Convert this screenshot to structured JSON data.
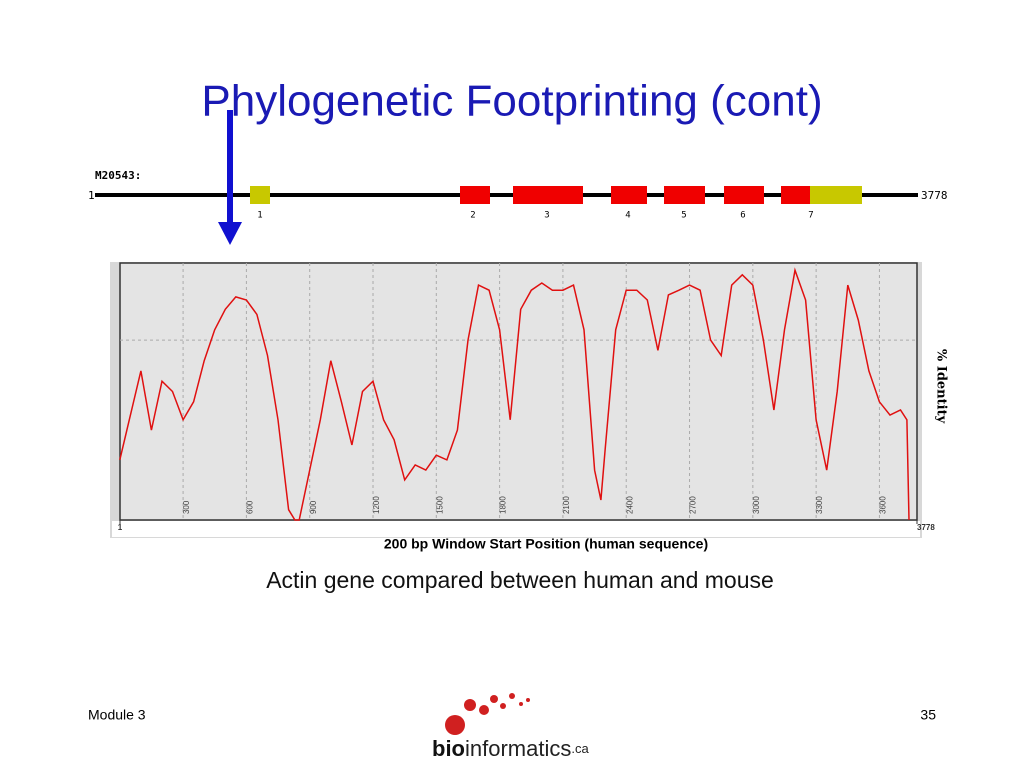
{
  "title": "Phylogenetic Footprinting (cont)",
  "gene_map": {
    "name": "M20543:",
    "start": "1",
    "end": "3778",
    "exon_labels": [
      "1",
      "2",
      "3",
      "4",
      "5",
      "6",
      "7"
    ]
  },
  "chart_data": {
    "type": "line",
    "x_label": "200 bp Window Start Position (human sequence)",
    "y_label": "% Identity",
    "x": [
      0,
      100,
      150,
      200,
      250,
      300,
      350,
      400,
      450,
      500,
      550,
      600,
      650,
      700,
      750,
      800,
      830,
      850,
      900,
      950,
      1000,
      1050,
      1100,
      1150,
      1200,
      1250,
      1300,
      1350,
      1400,
      1450,
      1500,
      1550,
      1600,
      1650,
      1700,
      1750,
      1800,
      1850,
      1900,
      1950,
      2000,
      2050,
      2100,
      2150,
      2200,
      2250,
      2280,
      2300,
      2350,
      2400,
      2450,
      2500,
      2550,
      2600,
      2650,
      2700,
      2750,
      2800,
      2850,
      2900,
      2950,
      3000,
      3050,
      3100,
      3150,
      3200,
      3250,
      3300,
      3350,
      3400,
      3450,
      3500,
      3550,
      3600,
      3650,
      3700,
      3730,
      3740
    ],
    "series": [
      {
        "color": "#e01010",
        "values": [
          61.7,
          79,
          67.5,
          77,
          75,
          69.5,
          73,
          81,
          87,
          91,
          93.4,
          92.8,
          90,
          82,
          69.5,
          52,
          50,
          50,
          59.7,
          69.5,
          81,
          73,
          64.6,
          75,
          77,
          69.5,
          65.6,
          57.8,
          60.7,
          59.7,
          62.6,
          61.7,
          67.5,
          85,
          95.7,
          94.7,
          87,
          69.5,
          91,
          94.7,
          96.1,
          94.7,
          94.7,
          95.7,
          87,
          59.7,
          53.9,
          63.6,
          87,
          94.7,
          94.7,
          92.8,
          83,
          93.8,
          94.7,
          95.7,
          94.7,
          85,
          82,
          95.7,
          97.7,
          95.7,
          85,
          71.4,
          87,
          98.6,
          92.8,
          69.5,
          59.7,
          75,
          95.7,
          88.9,
          79,
          73,
          70.4,
          71.4,
          69.5,
          50
        ]
      }
    ],
    "xlim": [
      1,
      3778
    ],
    "xticks": [
      1,
      300,
      600,
      900,
      1200,
      1500,
      1800,
      2100,
      2400,
      2700,
      3000,
      3300,
      3600,
      3778
    ],
    "ylim": [
      50,
      100
    ],
    "ygrid": [
      85
    ],
    "grid": true
  },
  "caption": "Actin gene compared between human and mouse",
  "footer": {
    "module": "Module 3",
    "page": "35"
  },
  "logo": {
    "bio": "bio",
    "informatics": "informatics",
    "domain": ".ca"
  }
}
